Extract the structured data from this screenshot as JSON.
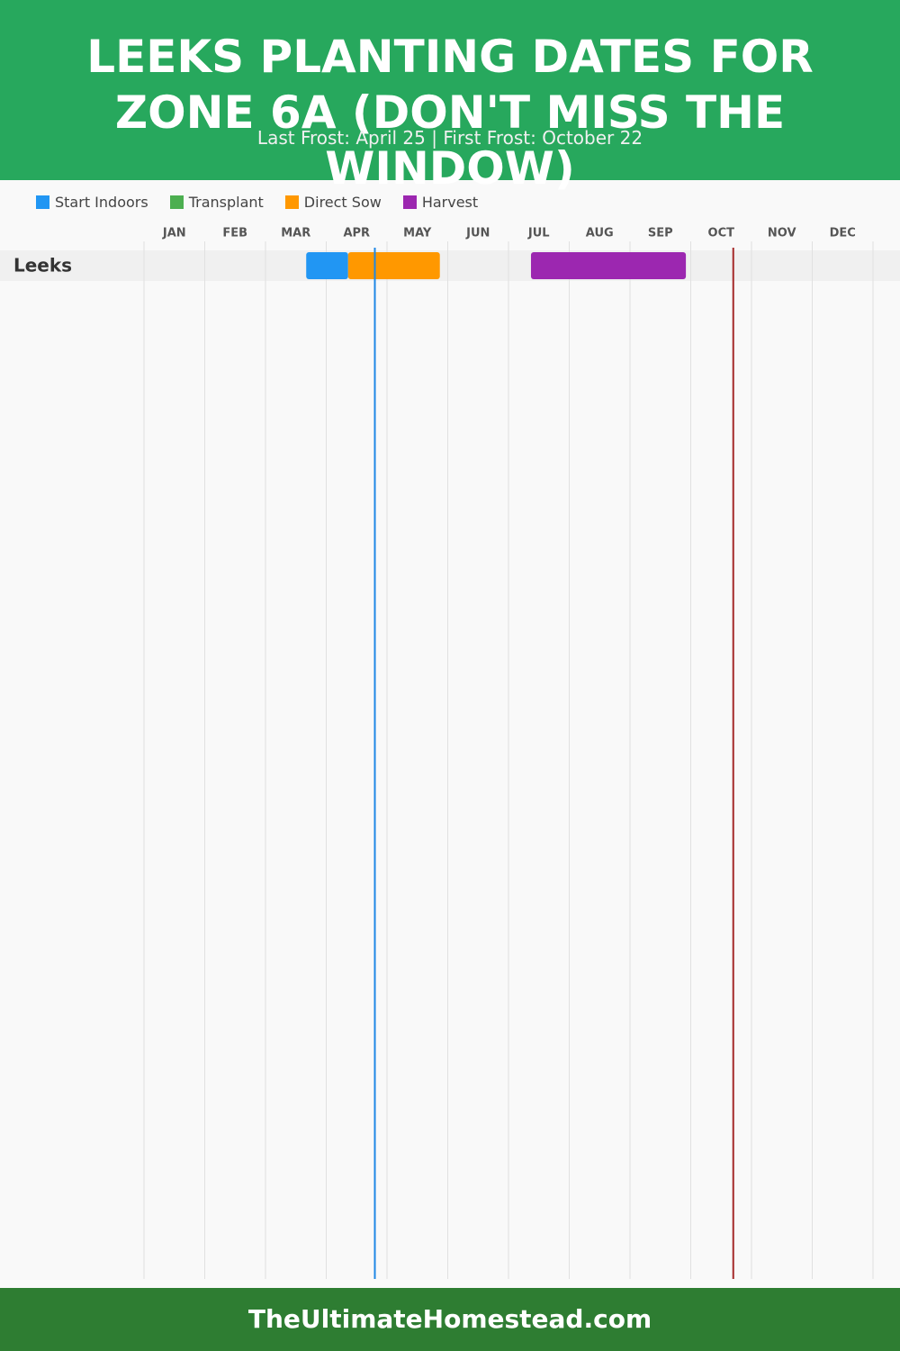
{
  "chart_data": {
    "type": "gantt",
    "title": "LEEKS PLANTING DATES FOR ZONE 6A (DON'T MISS THE WINDOW)",
    "subtitle": "Last Frost: April 25 | First Frost: October 22",
    "footer": "TheUltimateHomestead.com",
    "categories": [
      "JAN",
      "FEB",
      "MAR",
      "APR",
      "MAY",
      "JUN",
      "JUL",
      "AUG",
      "SEP",
      "OCT",
      "NOV",
      "DEC"
    ],
    "xlim": [
      0,
      12
    ],
    "rows": [
      "Leeks"
    ],
    "series": [
      {
        "name": "Start Indoors",
        "color": "#2196f3",
        "start": [
          2.67
        ],
        "end": [
          3.36
        ]
      },
      {
        "name": "Transplant",
        "color": "#4caf50",
        "start": [
          null
        ],
        "end": [
          null
        ]
      },
      {
        "name": "Direct Sow",
        "color": "#ff9800",
        "start": [
          3.36
        ],
        "end": [
          4.87
        ]
      },
      {
        "name": "Harvest",
        "color": "#9c27b0",
        "start": [
          6.37
        ],
        "end": [
          8.92
        ]
      }
    ],
    "markers": [
      {
        "value": 3.8,
        "color": "#1e88e5"
      },
      {
        "value": 9.7,
        "color": "#a52a2a"
      }
    ],
    "grid": true
  }
}
